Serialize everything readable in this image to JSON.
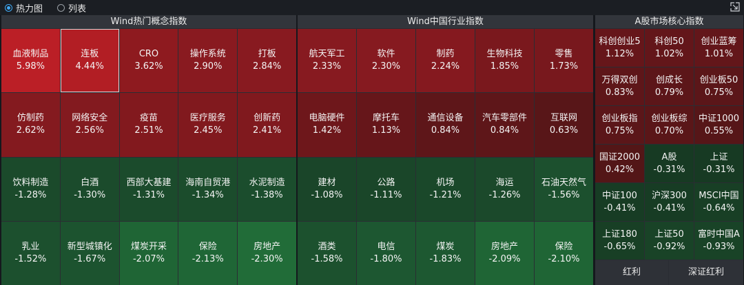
{
  "view_options": [
    {
      "label": "热力图",
      "selected": true
    },
    {
      "label": "列表",
      "selected": false
    }
  ],
  "panels": [
    {
      "title": "Wind热门概念指数",
      "tiles": [
        {
          "name": "血液制品",
          "change": "5.98%",
          "color": "#bb1f26"
        },
        {
          "name": "连板",
          "change": "4.44%",
          "color": "#b21e24",
          "selected": true
        },
        {
          "name": "CRO",
          "change": "3.62%",
          "color": "#8e1a1f"
        },
        {
          "name": "操作系统",
          "change": "2.90%",
          "color": "#891a20"
        },
        {
          "name": "打板",
          "change": "2.84%",
          "color": "#881a20"
        },
        {
          "name": "仿制药",
          "change": "2.62%",
          "color": "#841a1f"
        },
        {
          "name": "网络安全",
          "change": "2.56%",
          "color": "#831a1f"
        },
        {
          "name": "疫苗",
          "change": "2.51%",
          "color": "#82191e"
        },
        {
          "name": "医疗服务",
          "change": "2.45%",
          "color": "#81191e"
        },
        {
          "name": "创新药",
          "change": "2.41%",
          "color": "#80191e"
        },
        {
          "name": "饮料制造",
          "change": "-1.28%",
          "color": "#1b4a2b"
        },
        {
          "name": "白酒",
          "change": "-1.30%",
          "color": "#1b4b2c"
        },
        {
          "name": "西部大基建",
          "change": "-1.31%",
          "color": "#1b4b2c"
        },
        {
          "name": "海南自贸港",
          "change": "-1.34%",
          "color": "#1b4c2c"
        },
        {
          "name": "水泥制造",
          "change": "-1.38%",
          "color": "#1b4d2d"
        },
        {
          "name": "乳业",
          "change": "-1.52%",
          "color": "#1c502e"
        },
        {
          "name": "新型城镇化",
          "change": "-1.67%",
          "color": "#1c532f"
        },
        {
          "name": "煤炭开采",
          "change": "-2.07%",
          "color": "#1f6535"
        },
        {
          "name": "保险",
          "change": "-2.13%",
          "color": "#1f6636"
        },
        {
          "name": "房地产",
          "change": "-2.30%",
          "color": "#216c38"
        }
      ]
    },
    {
      "title": "Wind中国行业指数",
      "tiles": [
        {
          "name": "航天军工",
          "change": "2.33%",
          "color": "#871a20"
        },
        {
          "name": "软件",
          "change": "2.30%",
          "color": "#861a20"
        },
        {
          "name": "制药",
          "change": "2.24%",
          "color": "#85191f"
        },
        {
          "name": "生物科技",
          "change": "1.85%",
          "color": "#7a181d"
        },
        {
          "name": "零售",
          "change": "1.73%",
          "color": "#78181d"
        },
        {
          "name": "电脑硬件",
          "change": "1.42%",
          "color": "#6e171b"
        },
        {
          "name": "摩托车",
          "change": "1.13%",
          "color": "#66161a"
        },
        {
          "name": "通信设备",
          "change": "0.84%",
          "color": "#5e1619"
        },
        {
          "name": "汽车零部件",
          "change": "0.84%",
          "color": "#5e1619"
        },
        {
          "name": "互联网",
          "change": "0.63%",
          "color": "#581618"
        },
        {
          "name": "建材",
          "change": "-1.08%",
          "color": "#1a4529"
        },
        {
          "name": "公路",
          "change": "-1.11%",
          "color": "#1a4629"
        },
        {
          "name": "机场",
          "change": "-1.21%",
          "color": "#1a482a"
        },
        {
          "name": "海运",
          "change": "-1.26%",
          "color": "#1b492b"
        },
        {
          "name": "石油天然气",
          "change": "-1.56%",
          "color": "#1c502e"
        },
        {
          "name": "酒类",
          "change": "-1.58%",
          "color": "#1c512e"
        },
        {
          "name": "电信",
          "change": "-1.80%",
          "color": "#1d5731"
        },
        {
          "name": "煤炭",
          "change": "-1.83%",
          "color": "#1d5831"
        },
        {
          "name": "房地产",
          "change": "-2.09%",
          "color": "#1f6535"
        },
        {
          "name": "保险",
          "change": "-2.10%",
          "color": "#1f6535"
        }
      ]
    },
    {
      "title": "A股市场核心指数",
      "tiles": [
        {
          "name": "科创创业5",
          "change": "1.12%",
          "color": "#66161a"
        },
        {
          "name": "科创50",
          "change": "1.02%",
          "color": "#63161a"
        },
        {
          "name": "创业蓝筹",
          "change": "1.01%",
          "color": "#63161a"
        },
        {
          "name": "万得双创",
          "change": "0.83%",
          "color": "#5e1619"
        },
        {
          "name": "创成长",
          "change": "0.79%",
          "color": "#5c1619"
        },
        {
          "name": "创业板50",
          "change": "0.75%",
          "color": "#5b1619"
        },
        {
          "name": "创业板指",
          "change": "0.75%",
          "color": "#5b1619"
        },
        {
          "name": "创业板综",
          "change": "0.70%",
          "color": "#5a1618"
        },
        {
          "name": "中证1000",
          "change": "0.55%",
          "color": "#561618"
        },
        {
          "name": "国证2000",
          "change": "0.42%",
          "color": "#531617"
        },
        {
          "name": "A股",
          "change": "-0.31%",
          "color": "#173a23"
        },
        {
          "name": "上证",
          "change": "-0.31%",
          "color": "#173a23"
        },
        {
          "name": "中证100",
          "change": "-0.41%",
          "color": "#173c24"
        },
        {
          "name": "沪深300",
          "change": "-0.41%",
          "color": "#173c24"
        },
        {
          "name": "MSCI中国",
          "change": "-0.64%",
          "color": "#183f25"
        },
        {
          "name": "上证180",
          "change": "-0.65%",
          "color": "#183f25"
        },
        {
          "name": "上证50",
          "change": "-0.92%",
          "color": "#194327"
        },
        {
          "name": "富时中国A",
          "change": "-0.93%",
          "color": "#194327"
        }
      ],
      "bottom": [
        {
          "name": "红利",
          "change": ""
        },
        {
          "name": "深证红利",
          "change": ""
        }
      ]
    }
  ]
}
